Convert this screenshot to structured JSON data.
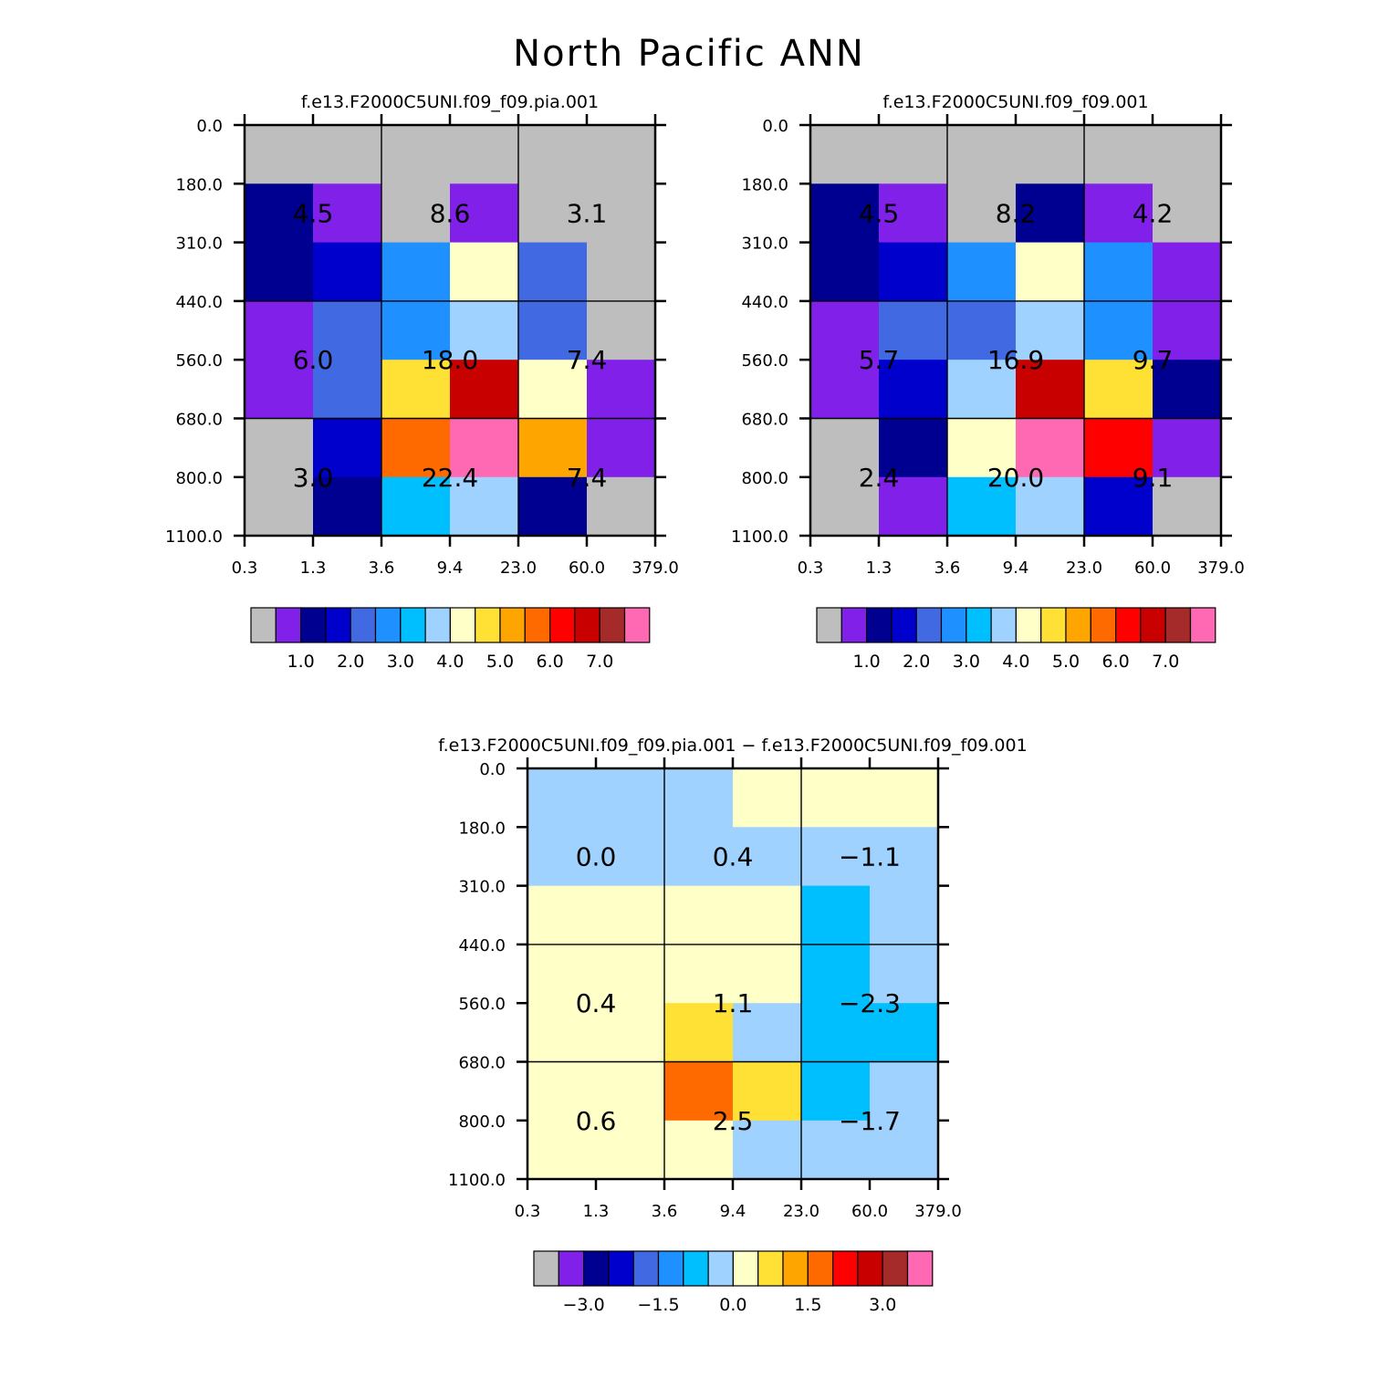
{
  "figure_title": "North Pacific ANN",
  "colors": {
    "palette": [
      "#BEBEBE",
      "#8020E8",
      "#000090",
      "#0000CD",
      "#4169E1",
      "#1E90FF",
      "#00BFFF",
      "#A0D2FF",
      "#FFFFC8",
      "#FFE135",
      "#FFA500",
      "#FF6A00",
      "#FF0000",
      "#C80000",
      "#A52A2A",
      "#FF69B4"
    ],
    "divider": "#000000"
  },
  "chart_data": [
    {
      "id": "model",
      "type": "heatmap",
      "title": "f.e13.F2000C5UNI.f09_f09.pia.001",
      "x_ticks": [
        "0.3",
        "1.3",
        "3.6",
        "9.4",
        "23.0",
        "60.0",
        "379.0"
      ],
      "y_ticks": [
        "0.0",
        "180.0",
        "310.0",
        "440.0",
        "560.0",
        "680.0",
        "800.0",
        "1100.0"
      ],
      "row_bin_order": "top-to-bottom",
      "cell_color_index": [
        [
          0,
          0,
          0,
          0,
          0,
          0
        ],
        [
          2,
          1,
          0,
          1,
          0,
          0
        ],
        [
          2,
          3,
          5,
          8,
          4,
          0
        ],
        [
          1,
          4,
          5,
          7,
          4,
          0
        ],
        [
          1,
          4,
          9,
          13,
          8,
          1
        ],
        [
          0,
          3,
          11,
          15,
          10,
          1
        ],
        [
          0,
          2,
          6,
          7,
          2,
          0
        ]
      ],
      "block_values": [
        [
          "4.5",
          "8.6",
          "3.1"
        ],
        [
          "6.0",
          "18.0",
          "7.4"
        ],
        [
          "3.0",
          "22.4",
          "7.4"
        ]
      ],
      "colorbar": {
        "labels": [
          "1.0",
          "2.0",
          "3.0",
          "4.0",
          "5.0",
          "6.0",
          "7.0"
        ],
        "label_after_box": [
          1,
          3,
          5,
          7,
          9,
          11,
          13
        ]
      }
    },
    {
      "id": "obs",
      "type": "heatmap",
      "title": "f.e13.F2000C5UNI.f09_f09.001",
      "x_ticks": [
        "0.3",
        "1.3",
        "3.6",
        "9.4",
        "23.0",
        "60.0",
        "379.0"
      ],
      "y_ticks": [
        "0.0",
        "180.0",
        "310.0",
        "440.0",
        "560.0",
        "680.0",
        "800.0",
        "1100.0"
      ],
      "row_bin_order": "top-to-bottom",
      "cell_color_index": [
        [
          0,
          0,
          0,
          0,
          0,
          0
        ],
        [
          2,
          1,
          0,
          2,
          1,
          0
        ],
        [
          2,
          3,
          5,
          8,
          5,
          1
        ],
        [
          1,
          4,
          4,
          7,
          5,
          1
        ],
        [
          1,
          3,
          7,
          13,
          9,
          2
        ],
        [
          0,
          2,
          8,
          15,
          12,
          1
        ],
        [
          0,
          1,
          6,
          7,
          3,
          0
        ]
      ],
      "block_values": [
        [
          "4.5",
          "8.2",
          "4.2"
        ],
        [
          "5.7",
          "16.9",
          "9.7"
        ],
        [
          "2.4",
          "20.0",
          "9.1"
        ]
      ],
      "colorbar": {
        "labels": [
          "1.0",
          "2.0",
          "3.0",
          "4.0",
          "5.0",
          "6.0",
          "7.0"
        ],
        "label_after_box": [
          1,
          3,
          5,
          7,
          9,
          11,
          13
        ]
      }
    },
    {
      "id": "diff",
      "type": "heatmap",
      "title": "f.e13.F2000C5UNI.f09_f09.pia.001 − f.e13.F2000C5UNI.f09_f09.001",
      "x_ticks": [
        "0.3",
        "1.3",
        "3.6",
        "9.4",
        "23.0",
        "60.0",
        "379.0"
      ],
      "y_ticks": [
        "0.0",
        "180.0",
        "310.0",
        "440.0",
        "560.0",
        "680.0",
        "800.0",
        "1100.0"
      ],
      "row_bin_order": "top-to-bottom",
      "cell_color_index": [
        [
          7,
          7,
          7,
          8,
          8,
          8
        ],
        [
          7,
          7,
          7,
          7,
          7,
          7
        ],
        [
          8,
          8,
          8,
          8,
          6,
          7
        ],
        [
          8,
          8,
          8,
          8,
          6,
          7
        ],
        [
          8,
          8,
          9,
          7,
          6,
          6
        ],
        [
          8,
          8,
          11,
          9,
          6,
          7
        ],
        [
          8,
          8,
          8,
          7,
          7,
          7
        ]
      ],
      "block_values": [
        [
          "0.0",
          "0.4",
          "−1.1"
        ],
        [
          "0.4",
          "1.1",
          "−2.3"
        ],
        [
          "0.6",
          "2.5",
          "−1.7"
        ]
      ],
      "colorbar": {
        "labels": [
          "−3.0",
          "−1.5",
          "0.0",
          "1.5",
          "3.0"
        ],
        "label_after_box": [
          1,
          4,
          7,
          10,
          13
        ]
      }
    }
  ]
}
